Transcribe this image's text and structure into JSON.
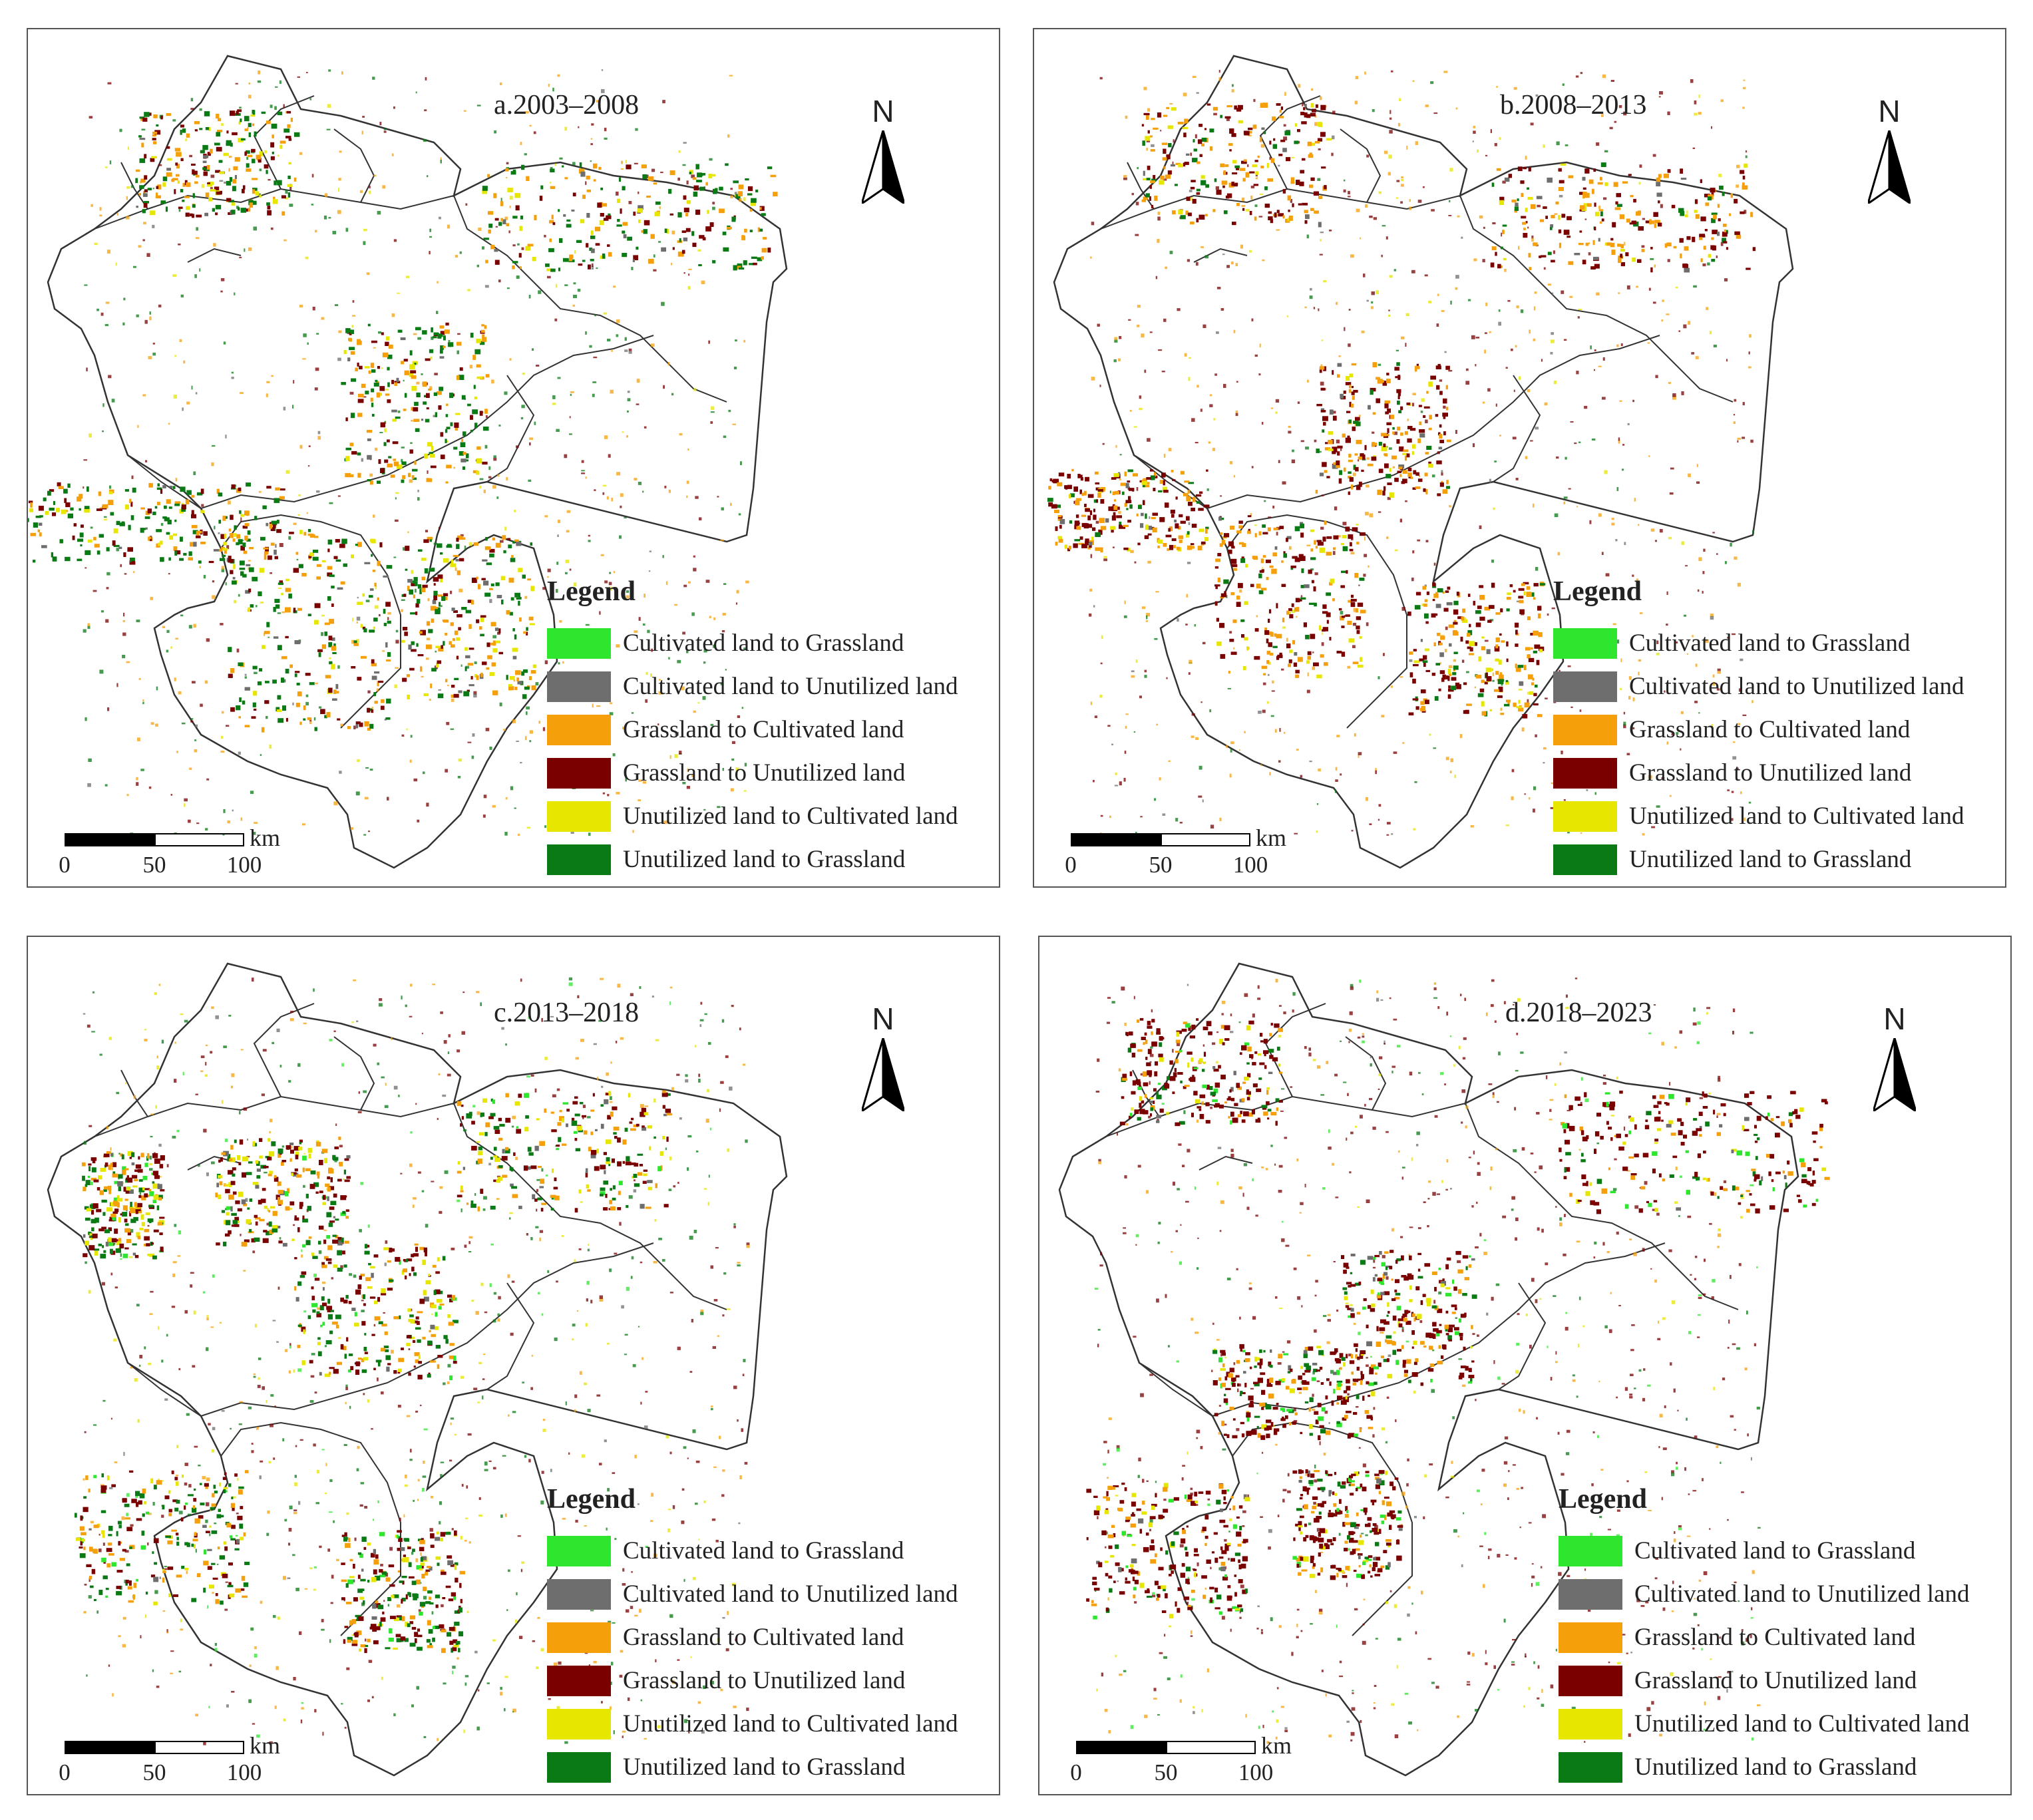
{
  "panels": [
    {
      "title": "a.2003–2008"
    },
    {
      "title": "b.2008–2013"
    },
    {
      "title": "c.2013–2018"
    },
    {
      "title": "d.2018–2023"
    }
  ],
  "north_arrow": {
    "label": "N"
  },
  "legend": {
    "title": "Legend",
    "items": [
      {
        "label": "Cultivated land to Grassland",
        "color": "#2ee62e"
      },
      {
        "label": "Cultivated land to Unutilized land",
        "color": "#6e6e6e"
      },
      {
        "label": "Grassland to Cultivated land",
        "color": "#f5a00a"
      },
      {
        "label": "Grassland to Unutilized land",
        "color": "#7a0000"
      },
      {
        "label": "Unutilized land to Cultivated land",
        "color": "#e6e600"
      },
      {
        "label": "Unutilized land to Grassland",
        "color": "#0a7a14"
      }
    ]
  },
  "scale_bar": {
    "unit": "km",
    "ticks": [
      "0",
      "50",
      "100"
    ]
  }
}
